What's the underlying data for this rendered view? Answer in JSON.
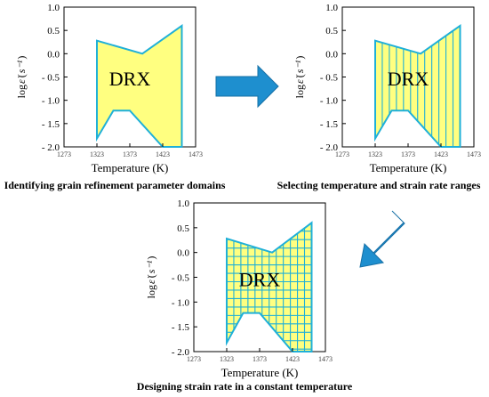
{
  "panels": [
    {
      "id": "panel-1",
      "caption": "Identifying grain refinement parameter domains",
      "region_label": "DRX",
      "fill_pattern": "solid",
      "x_label": "Temperature (K)",
      "y_label_prefix": "log",
      "y_label_symbol": "ε̇",
      "y_label_unit": "s⁻¹",
      "x_ticks": [
        "1273",
        "1323",
        "1373",
        "1423",
        "1473"
      ],
      "y_ticks": [
        "1.0",
        "0.5",
        "0.0",
        "- 0.5",
        "- 1.0",
        "- 1.5",
        "- 2.0"
      ]
    },
    {
      "id": "panel-2",
      "caption": "Selecting temperature and strain rate ranges",
      "region_label": "DRX",
      "fill_pattern": "vertical-lines",
      "x_label": "Temperature (K)",
      "y_label_prefix": "log",
      "y_label_symbol": "ε̇",
      "y_label_unit": "s⁻¹",
      "x_ticks": [
        "1273",
        "1323",
        "1373",
        "1423",
        "1473"
      ],
      "y_ticks": [
        "1.0",
        "0.5",
        "0.0",
        "- 0.5",
        "- 1.0",
        "- 1.5",
        "- 2.0"
      ]
    },
    {
      "id": "panel-3",
      "caption": "Designing strain rate in a constant temperature",
      "region_label": "DRX",
      "fill_pattern": "grid",
      "x_label": "Temperature (K)",
      "y_label_prefix": "log",
      "y_label_symbol": "ε̇",
      "y_label_unit": "s⁻¹",
      "x_ticks": [
        "1273",
        "1323",
        "1373",
        "1423",
        "1473"
      ],
      "y_ticks": [
        "1.0",
        "0.5",
        "0.0",
        "- 0.5",
        "- 1.0",
        "- 1.5",
        "- 2.0"
      ]
    }
  ],
  "region_polygon": {
    "x_range": [
      1273,
      1473
    ],
    "y_range": [
      -2.0,
      1.0
    ],
    "boundary": [
      [
        1323,
        0.28
      ],
      [
        1392,
        0.0
      ],
      [
        1452,
        0.6
      ],
      [
        1452,
        -2.0
      ],
      [
        1423,
        -2.0
      ],
      [
        1373,
        -1.22
      ],
      [
        1348,
        -1.22
      ],
      [
        1323,
        -1.82
      ]
    ]
  },
  "colors": {
    "region_fill": "#ffff80",
    "region_stroke": "#1fb0d8",
    "hatch": "#1fb0d8",
    "arrow": "#1e8fcf",
    "arrow_dark": "#1670a6"
  },
  "arrows": [
    {
      "name": "arrow-right-icon",
      "direction": "right"
    },
    {
      "name": "arrow-down-left-icon",
      "direction": "down-left"
    }
  ]
}
